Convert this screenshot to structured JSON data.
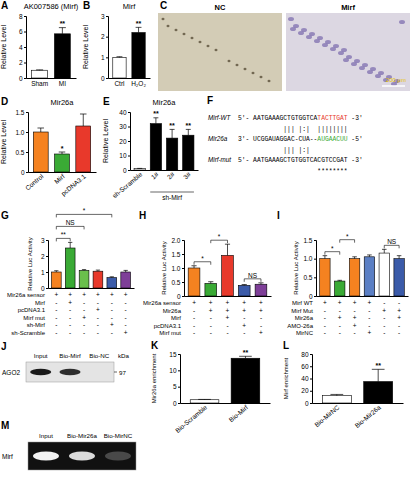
{
  "chart_data": [
    {
      "panel": "A",
      "type": "bar",
      "title": "AK007586 (Mirf)",
      "y_label": "Relative Level",
      "categories": [
        "Sham",
        "MI"
      ],
      "values": [
        1,
        5.7
      ],
      "errors": [
        0.05,
        0.8
      ],
      "colors": [
        "#ffffff",
        "#000000"
      ],
      "ylim": [
        0,
        8
      ],
      "yticks": [
        0,
        2,
        4,
        6,
        8
      ],
      "significance": [
        {
          "label": "**",
          "at": 1
        }
      ]
    },
    {
      "panel": "B",
      "type": "bar",
      "title": "Mirf",
      "y_label": "Relative Level",
      "categories": [
        "Ctrl",
        "H₂O₂"
      ],
      "values": [
        1,
        2.2
      ],
      "errors": [
        0.03,
        0.25
      ],
      "colors": [
        "#ffffff",
        "#000000"
      ],
      "ylim": [
        0,
        3
      ],
      "yticks": [
        0,
        1,
        2,
        3
      ],
      "significance": [
        {
          "label": "**",
          "at": 1
        }
      ]
    },
    {
      "panel": "D",
      "type": "bar",
      "title": "Mir26a",
      "y_label": "Relative Level",
      "categories": [
        "Control",
        "Mirf",
        "pcDNA3.1"
      ],
      "values": [
        1,
        0.45,
        1.15
      ],
      "errors": [
        0.1,
        0.05,
        0.3
      ],
      "colors": [
        "#f58220",
        "#3aaa35",
        "#e8392b"
      ],
      "ylim": [
        0,
        1.5
      ],
      "yticks": [
        0,
        0.5,
        {
          "value": 1,
          "label": "1.0"
        },
        1.5
      ],
      "significance": [
        {
          "label": "*",
          "at": 1
        }
      ]
    },
    {
      "panel": "E",
      "type": "bar",
      "title": "Mir26a",
      "y_label": "Relative Level",
      "categories": [
        "sh-Scramble",
        "1#",
        "2#",
        "3#"
      ],
      "values": [
        1,
        32,
        22,
        24
      ],
      "errors": [
        0.1,
        4,
        6,
        4
      ],
      "colors": [
        "#ffffff",
        "#000000",
        "#000000",
        "#000000"
      ],
      "ylim": [
        0,
        40
      ],
      "yticks": [
        0,
        10,
        20,
        30,
        40
      ],
      "significance": [
        {
          "label": "**",
          "at": 1
        },
        {
          "label": "**",
          "at": 2
        },
        {
          "label": "**",
          "at": 3
        }
      ],
      "group": {
        "label": "sh-Mirf",
        "from": 1,
        "to": 3
      }
    },
    {
      "panel": "G",
      "type": "bar",
      "y_label": "Relative Luc Activity",
      "categories": [
        null,
        null,
        null,
        null,
        null,
        null
      ],
      "values": [
        1,
        2.5,
        1.1,
        1.05,
        0.65,
        1.0
      ],
      "errors": [
        0.08,
        0.35,
        0.05,
        0.07,
        0.05,
        0.1
      ],
      "colors": [
        "#f58220",
        "#3aaa35",
        "#6abf4b",
        "#e8392b",
        "#3b5ba9",
        "#7e3f98"
      ],
      "ylim": [
        0,
        3
      ],
      "yticks": [
        0,
        1,
        2,
        3
      ],
      "significance": [
        {
          "label": "**",
          "from": 0,
          "to": 1
        },
        {
          "label": "NS",
          "from": 0,
          "to": 2
        },
        {
          "label": "*",
          "from": 0,
          "to": 4
        }
      ],
      "conditions": [
        {
          "label": "Mir26a sensor",
          "values": [
            "+",
            "+",
            "+",
            "+",
            "+",
            "+"
          ]
        },
        {
          "label": "Mirf",
          "values": [
            "-",
            "+",
            "-",
            "-",
            "-",
            "-"
          ]
        },
        {
          "label": "pcDNA3.1",
          "values": [
            "-",
            "-",
            "-",
            "+",
            "-",
            "-"
          ]
        },
        {
          "label": "Mirf mut",
          "values": [
            "-",
            "-",
            "+",
            "-",
            "-",
            "-"
          ]
        },
        {
          "label": "sh-Mirf",
          "values": [
            "-",
            "-",
            "-",
            "-",
            "+",
            "-"
          ]
        },
        {
          "label": "sh-Scramble",
          "values": [
            "-",
            "-",
            "-",
            "-",
            "-",
            "+"
          ]
        }
      ]
    },
    {
      "panel": "H",
      "type": "bar",
      "y_label": "Relative Luc Activity",
      "categories": [
        null,
        null,
        null,
        null,
        null
      ],
      "values": [
        1,
        0.45,
        1.45,
        0.38,
        0.42
      ],
      "errors": [
        0.08,
        0.06,
        0.4,
        0.03,
        0.05
      ],
      "colors": [
        "#f58220",
        "#3aaa35",
        "#e8392b",
        "#3b5ba9",
        "#7e3f98"
      ],
      "ylim": [
        0,
        2
      ],
      "yticks": [
        0,
        0.5,
        {
          "value": 1,
          "label": "1.0"
        },
        1.5,
        {
          "value": 2,
          "label": "2.0"
        }
      ],
      "significance": [
        {
          "label": "*",
          "from": 0,
          "to": 1
        },
        {
          "label": "*",
          "from": 1,
          "to": 2
        },
        {
          "label": "NS",
          "from": 3,
          "to": 4
        }
      ],
      "conditions": [
        {
          "label": "Mir26a sensor",
          "values": [
            "+",
            "+",
            "+",
            "+",
            "+"
          ]
        },
        {
          "label": "Mir26a",
          "values": [
            "-",
            "+",
            "+",
            "+",
            "+"
          ]
        },
        {
          "label": "Mirf",
          "values": [
            "-",
            "-",
            "+",
            "-",
            "-"
          ]
        },
        {
          "label": "pcDNA3.1",
          "values": [
            "-",
            "-",
            "-",
            "+",
            "-"
          ]
        },
        {
          "label": "Mirf mut",
          "values": [
            "-",
            "-",
            "-",
            "-",
            "+"
          ]
        }
      ]
    },
    {
      "panel": "I",
      "type": "bar",
      "y_label": "Relative Luc Activity",
      "categories": [
        null,
        null,
        null,
        null,
        null,
        null
      ],
      "values": [
        1,
        0.4,
        1.0,
        1.05,
        1.15,
        1.0
      ],
      "errors": [
        0.08,
        0.02,
        0.05,
        0.05,
        0.1,
        0.08
      ],
      "colors": [
        "#f58220",
        "#3aaa35",
        "#f58220",
        "#5b7fc4",
        "#ffffff",
        "#3b5ba9"
      ],
      "ylim": [
        0,
        1.5
      ],
      "yticks": [
        0,
        0.5,
        {
          "value": 1,
          "label": "1.0"
        },
        1.5
      ],
      "significance": [
        {
          "label": "*",
          "from": 0,
          "to": 1
        },
        {
          "label": "*",
          "from": 1,
          "to": 2
        },
        {
          "label": "NS",
          "from": 4,
          "to": 5
        }
      ],
      "conditions": [
        {
          "label": "Mirf WT",
          "values": [
            "+",
            "+",
            "+",
            "+",
            "-",
            "-"
          ]
        },
        {
          "label": "Mirf Mut",
          "values": [
            "-",
            "-",
            "-",
            "-",
            "+",
            "+"
          ]
        },
        {
          "label": "Mir26a",
          "values": [
            "-",
            "+",
            "+",
            "-",
            "-",
            "+"
          ]
        },
        {
          "label": "AMO-26a",
          "values": [
            "-",
            "-",
            "+",
            "-",
            "-",
            "-"
          ]
        },
        {
          "label": "MirNC",
          "values": [
            "-",
            "-",
            "-",
            "+",
            "-",
            "-"
          ]
        }
      ]
    },
    {
      "panel": "K",
      "type": "bar",
      "y_label": "Mir26a enrichment",
      "categories": [
        "Bio-Scramble",
        "Bio-Mirf"
      ],
      "values": [
        1,
        13.7
      ],
      "errors": [
        0.1,
        0.6
      ],
      "colors": [
        "#ffffff",
        "#000000"
      ],
      "ylim": [
        0,
        15
      ],
      "yticks": [
        0,
        5,
        10,
        15
      ],
      "significance": [
        {
          "label": "**",
          "at": 1
        }
      ]
    },
    {
      "panel": "L",
      "type": "bar",
      "y_label": "Mirf enrichment",
      "categories": [
        "Bio-MirNC",
        "Bio-Mir26a"
      ],
      "values": [
        12,
        35
      ],
      "errors": [
        2,
        20
      ],
      "colors": [
        "#ffffff",
        "#000000"
      ],
      "ylim": [
        0,
        80
      ],
      "yticks": [
        0,
        20,
        40,
        60,
        80
      ],
      "significance": [
        {
          "label": "**",
          "at": 1
        }
      ]
    }
  ],
  "images": {
    "panel": "C",
    "labels": [
      "NC",
      "Mirf"
    ],
    "scale_bar": "200 μm"
  },
  "alignment": {
    "panel": "F",
    "rows": [
      {
        "label": "Mirf-WT",
        "segments": [
          {
            "text": "5'- AATGAAAGCTGTGGTCA"
          },
          {
            "text": "TACTTGAT",
            "color": "#e8392b"
          },
          {
            "text": " -3'"
          }
        ]
      },
      {
        "segments": [
          {
            "text": "            ||| |:|  ||||||||"
          }
        ]
      },
      {
        "label": "Mir26a",
        "segments": [
          {
            "text": "3'- UCGGAUAGGAC-CUA--"
          },
          {
            "text": "AUGAACUU",
            "color": "#3aaa35"
          },
          {
            "text": " -5'"
          }
        ]
      },
      {
        "segments": [
          {
            "text": "            ||| |:|"
          }
        ]
      },
      {
        "label": "Mirf-mut",
        "segments": [
          {
            "text": "5'- AATGAAAGCTGTGGTCACGTCCGAT -3'"
          }
        ]
      },
      {
        "segments": [
          {
            "text": "                     ********"
          }
        ]
      }
    ]
  },
  "blots": [
    {
      "panel": "J",
      "lanes": [
        "Input",
        "Bio-Mirf",
        "Bio-NC"
      ],
      "band": "AGO2",
      "marker_unit": "kDa",
      "marker": 97
    },
    {
      "panel": "M",
      "lanes": [
        "Input",
        "Bio-Mir26a",
        "Bio-MirNC"
      ],
      "band": "Mirf"
    }
  ]
}
